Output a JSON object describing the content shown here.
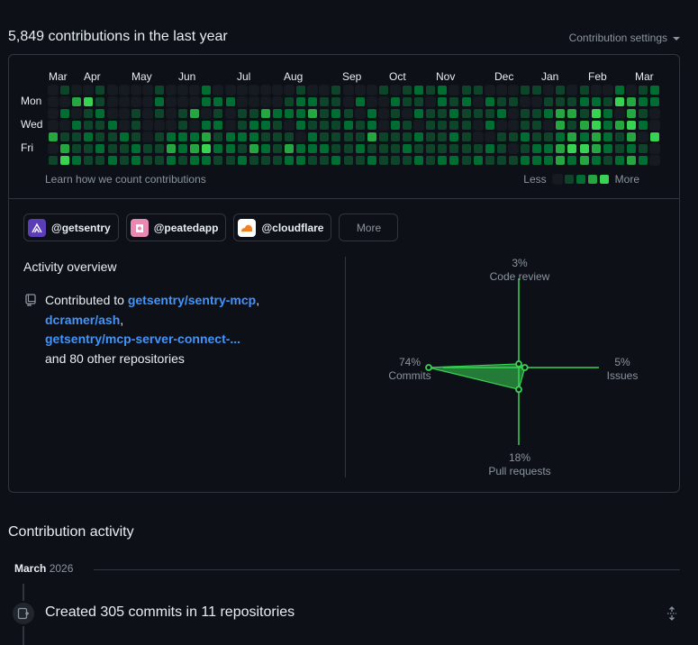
{
  "contributions": {
    "title": "5,849 contributions in the last year",
    "settings_label": "Contribution settings",
    "months": [
      "Mar",
      "Apr",
      "May",
      "Jun",
      "Jul",
      "Aug",
      "Sep",
      "Oct",
      "Nov",
      "Dec",
      "Jan",
      "Feb",
      "Mar"
    ],
    "days": [
      "Mon",
      "Wed",
      "Fri"
    ],
    "learn_link": "Learn how we count contributions",
    "legend_less": "Less",
    "legend_more": "More",
    "level_colors": [
      "#161b22",
      "#0e4429",
      "#006d32",
      "#26a641",
      "#39d353"
    ],
    "grid": [
      [
        0,
        1,
        0,
        0,
        1,
        0,
        0,
        0,
        0,
        1,
        0,
        0,
        0,
        2,
        0,
        0,
        0,
        0,
        0,
        0,
        0,
        1,
        0,
        0,
        1,
        0,
        0,
        0,
        1,
        0,
        1,
        2,
        1,
        2,
        0,
        1,
        1,
        0,
        0,
        0,
        1,
        1,
        0,
        1,
        0,
        1,
        0,
        0,
        2,
        0,
        1,
        2
      ],
      [
        0,
        0,
        3,
        4,
        1,
        0,
        0,
        0,
        0,
        2,
        0,
        0,
        0,
        2,
        2,
        2,
        0,
        0,
        0,
        0,
        1,
        2,
        2,
        1,
        1,
        0,
        2,
        0,
        0,
        2,
        1,
        1,
        0,
        2,
        1,
        2,
        0,
        2,
        1,
        1,
        0,
        0,
        1,
        1,
        1,
        2,
        2,
        1,
        4,
        3,
        2,
        2
      ],
      [
        0,
        2,
        0,
        1,
        2,
        0,
        0,
        1,
        0,
        1,
        0,
        1,
        3,
        0,
        1,
        0,
        1,
        1,
        3,
        2,
        2,
        2,
        3,
        1,
        2,
        1,
        0,
        2,
        0,
        1,
        0,
        2,
        1,
        1,
        2,
        1,
        1,
        1,
        2,
        0,
        1,
        1,
        2,
        3,
        3,
        1,
        4,
        2,
        0,
        3,
        1,
        0
      ],
      [
        0,
        0,
        2,
        1,
        1,
        2,
        0,
        1,
        0,
        0,
        0,
        1,
        0,
        2,
        2,
        0,
        1,
        2,
        2,
        1,
        0,
        2,
        1,
        1,
        1,
        2,
        1,
        2,
        0,
        2,
        1,
        0,
        1,
        1,
        1,
        1,
        0,
        2,
        0,
        0,
        1,
        1,
        0,
        3,
        1,
        3,
        4,
        2,
        3,
        4,
        2,
        0
      ],
      [
        3,
        1,
        1,
        2,
        1,
        1,
        2,
        1,
        0,
        1,
        2,
        2,
        2,
        3,
        1,
        2,
        2,
        2,
        1,
        1,
        1,
        0,
        2,
        1,
        1,
        1,
        1,
        3,
        1,
        1,
        1,
        2,
        1,
        1,
        2,
        1,
        0,
        0,
        1,
        1,
        2,
        1,
        1,
        2,
        3,
        2,
        3,
        2,
        1,
        3,
        0,
        4
      ],
      [
        0,
        3,
        1,
        1,
        2,
        1,
        1,
        2,
        1,
        1,
        3,
        2,
        3,
        4,
        2,
        2,
        1,
        3,
        2,
        1,
        3,
        2,
        2,
        2,
        1,
        1,
        2,
        1,
        1,
        1,
        2,
        1,
        1,
        1,
        1,
        1,
        1,
        2,
        1,
        0,
        1,
        2,
        2,
        3,
        4,
        4,
        3,
        2,
        1,
        2,
        1,
        0
      ],
      [
        1,
        4,
        2,
        1,
        1,
        2,
        1,
        2,
        1,
        1,
        2,
        1,
        2,
        2,
        1,
        1,
        2,
        1,
        1,
        1,
        2,
        2,
        1,
        1,
        2,
        1,
        1,
        2,
        1,
        1,
        1,
        2,
        1,
        2,
        2,
        1,
        2,
        1,
        1,
        1,
        2,
        2,
        2,
        3,
        2,
        3,
        2,
        1,
        2,
        3,
        2,
        0
      ]
    ]
  },
  "orgs": [
    {
      "handle": "@getsentry",
      "icon": "sentry-logo-icon"
    },
    {
      "handle": "@peatedapp",
      "icon": "peated-logo-icon"
    },
    {
      "handle": "@cloudflare",
      "icon": "cloudflare-logo-icon"
    }
  ],
  "more_label": "More",
  "overview": {
    "title": "Activity overview",
    "prefix": "Contributed to",
    "repo1": "getsentry/sentry-mcp",
    "repo2": "dcramer/ash",
    "repo3": "getsentry/mcp-server-connect-...",
    "suffix": "and 80 other repositories"
  },
  "radar": {
    "code_review_pct": "3%",
    "code_review_label": "Code review",
    "issues_pct": "5%",
    "issues_label": "Issues",
    "pull_requests_pct": "18%",
    "pull_requests_label": "Pull requests",
    "commits_pct": "74%",
    "commits_label": "Commits",
    "values": {
      "code_review": 3,
      "issues": 5,
      "pull_requests": 18,
      "commits": 74
    },
    "accent": "#39d353"
  },
  "activity": {
    "title": "Contribution activity",
    "month": "March",
    "year": "2026",
    "created_text": "Created 305 commits in 11 repositories"
  }
}
